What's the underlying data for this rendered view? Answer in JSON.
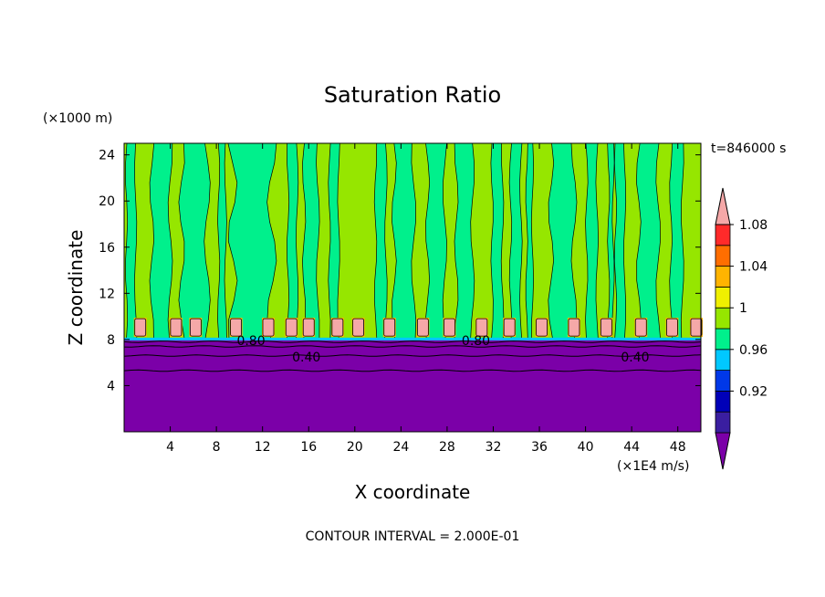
{
  "chart_data": {
    "type": "heatmap",
    "title": "Saturation Ratio",
    "xlabel": "X coordinate",
    "ylabel": "Z coordinate",
    "x_units": "(×1E4 m/s)",
    "y_units": "(×1000 m)",
    "time_label": "t=846000 s",
    "footer": "CONTOUR INTERVAL = 2.000E-01",
    "xlim": [
      0,
      50
    ],
    "ylim": [
      0,
      25
    ],
    "x_ticks": [
      4,
      8,
      12,
      16,
      20,
      24,
      28,
      32,
      36,
      40,
      44,
      48
    ],
    "y_ticks": [
      4,
      8,
      12,
      16,
      20,
      24
    ],
    "contour_labels": [
      {
        "text": "0.80",
        "x": 11,
        "z": 7.9
      },
      {
        "text": "0.40",
        "x": 15.8,
        "z": 6.5
      },
      {
        "text": "0.80",
        "x": 30.5,
        "z": 7.9
      },
      {
        "text": "0.40",
        "x": 44.3,
        "z": 6.5
      }
    ],
    "colorbar": {
      "levels": [
        0.92,
        0.96,
        1,
        1.04,
        1.08
      ],
      "labels": [
        "0.92",
        "0.96",
        "1",
        "1.04",
        "1.08"
      ],
      "colors": [
        "#7b00a8",
        "#3a1ea0",
        "#0000b8",
        "#0038e8",
        "#00c8ff",
        "#00f08c",
        "#96e600",
        "#f0f000",
        "#ffb400",
        "#ff6e00",
        "#ff2a2a",
        "#f5a8a8"
      ]
    },
    "regions": {
      "subsaturated_top_z": 8,
      "band_colors": {
        "dry": "#7b00a8",
        "near_one": "#00f08c",
        "above_one": "#96e600",
        "cloud": "#f5a8a8"
      }
    },
    "dry_layer_contours_z": [
      7.8,
      7.4,
      6.6,
      5.3
    ],
    "cloud_cells_x": [
      1.4,
      4.5,
      6.2,
      9.7,
      12.5,
      14.5,
      16.0,
      18.5,
      20.3,
      23.0,
      25.9,
      28.2,
      31.0,
      33.4,
      36.2,
      39.0,
      41.8,
      44.8,
      47.5,
      49.6
    ],
    "green_columns": [
      {
        "x0": 0.2,
        "x1": 1.0
      },
      {
        "x0": 2.4,
        "x1": 4.0
      },
      {
        "x0": 5.0,
        "x1": 7.2
      },
      {
        "x0": 8.2,
        "x1": 8.8
      },
      {
        "x0": 9.4,
        "x1": 12.8
      },
      {
        "x0": 14.2,
        "x1": 15.0
      },
      {
        "x0": 15.6,
        "x1": 16.8
      },
      {
        "x0": 17.8,
        "x1": 18.6
      },
      {
        "x0": 21.8,
        "x1": 22.7
      },
      {
        "x0": 23.4,
        "x1": 25.1
      },
      {
        "x0": 26.3,
        "x1": 27.8
      },
      {
        "x0": 28.8,
        "x1": 30.2
      },
      {
        "x0": 31.9,
        "x1": 32.8
      },
      {
        "x0": 33.5,
        "x1": 34.4
      },
      {
        "x0": 34.9,
        "x1": 35.4
      },
      {
        "x0": 37.0,
        "x1": 39.0
      },
      {
        "x0": 40.1,
        "x1": 41.0
      },
      {
        "x0": 42.0,
        "x1": 42.4
      },
      {
        "x0": 42.6,
        "x1": 43.4
      },
      {
        "x0": 44.6,
        "x1": 46.3
      },
      {
        "x0": 47.4,
        "x1": 48.4
      }
    ]
  }
}
